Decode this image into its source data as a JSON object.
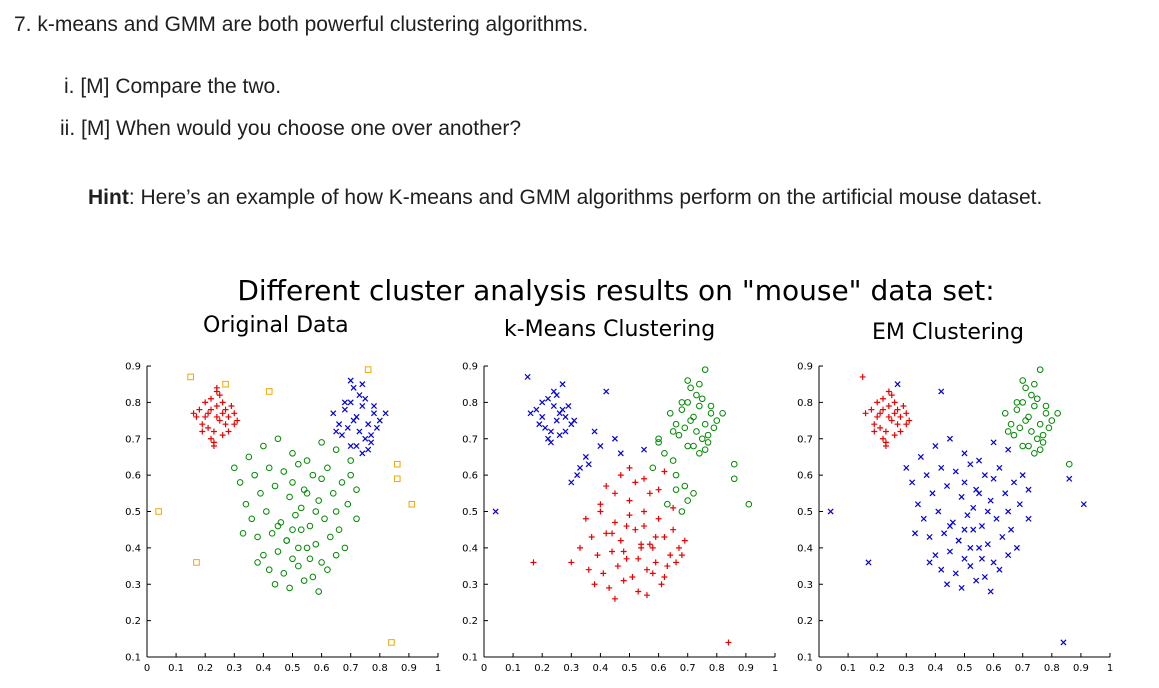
{
  "question": {
    "title": "7. k-means and GMM are both powerful clustering algorithms.",
    "subquestions": [
      "i. [M] Compare the two.",
      "ii. [M] When would you choose one over another?"
    ],
    "hint_label": "Hint",
    "hint_text": ": Here’s an example of how K-means and GMM algorithms perform on the artificial mouse dataset."
  },
  "figure": {
    "title": "Different cluster analysis results on \"mouse\" data set:",
    "panels": [
      {
        "title": "Original Data"
      },
      {
        "title": "k-Means Clustering"
      },
      {
        "title": "EM Clustering"
      }
    ]
  },
  "colors": {
    "red": "#ee0000",
    "blue": "#0000dd",
    "green": "#008800",
    "orange": "#eeaa00"
  },
  "chart_data": [
    {
      "type": "scatter",
      "title": "Original Data",
      "xlim": [
        0,
        1
      ],
      "ylim": [
        0.1,
        0.9
      ],
      "xticks": [
        "0",
        "0.1",
        "0.2",
        "0.3",
        "0.4",
        "0.5",
        "0.6",
        "0.7",
        "0.8",
        "0.9",
        "1"
      ],
      "yticks": [
        "0.1",
        "0.2",
        "0.3",
        "0.4",
        "0.5",
        "0.6",
        "0.7",
        "0.8",
        "0.9"
      ],
      "series": [
        {
          "marker": "plus",
          "color": "red",
          "x": [
            0.18,
            0.2,
            0.22,
            0.24,
            0.26,
            0.28,
            0.3,
            0.21,
            0.23,
            0.25,
            0.27,
            0.19,
            0.22,
            0.26,
            0.29,
            0.24,
            0.2,
            0.28,
            0.23,
            0.25,
            0.21,
            0.27,
            0.24,
            0.22,
            0.26,
            0.3,
            0.19,
            0.23,
            0.17,
            0.31,
            0.16,
            0.24
          ],
          "y": [
            0.78,
            0.8,
            0.81,
            0.79,
            0.77,
            0.76,
            0.74,
            0.73,
            0.72,
            0.75,
            0.78,
            0.74,
            0.7,
            0.71,
            0.79,
            0.83,
            0.76,
            0.72,
            0.69,
            0.82,
            0.77,
            0.74,
            0.76,
            0.78,
            0.8,
            0.77,
            0.72,
            0.68,
            0.76,
            0.75,
            0.77,
            0.84
          ]
        },
        {
          "marker": "cross",
          "color": "blue",
          "x": [
            0.64,
            0.66,
            0.68,
            0.7,
            0.72,
            0.74,
            0.76,
            0.78,
            0.8,
            0.67,
            0.69,
            0.71,
            0.73,
            0.75,
            0.77,
            0.79,
            0.7,
            0.72,
            0.74,
            0.76,
            0.68,
            0.73,
            0.75,
            0.71,
            0.78,
            0.65,
            0.82,
            0.7,
            0.74,
            0.77
          ],
          "y": [
            0.77,
            0.74,
            0.78,
            0.8,
            0.76,
            0.79,
            0.74,
            0.77,
            0.75,
            0.71,
            0.73,
            0.75,
            0.72,
            0.7,
            0.71,
            0.73,
            0.68,
            0.68,
            0.66,
            0.67,
            0.8,
            0.82,
            0.81,
            0.84,
            0.79,
            0.72,
            0.77,
            0.86,
            0.85,
            0.69
          ]
        },
        {
          "marker": "circle",
          "color": "green",
          "x": [
            0.3,
            0.35,
            0.4,
            0.45,
            0.5,
            0.55,
            0.6,
            0.65,
            0.7,
            0.32,
            0.37,
            0.42,
            0.47,
            0.52,
            0.57,
            0.62,
            0.67,
            0.72,
            0.34,
            0.39,
            0.44,
            0.49,
            0.54,
            0.59,
            0.64,
            0.69,
            0.36,
            0.41,
            0.46,
            0.51,
            0.56,
            0.61,
            0.66,
            0.38,
            0.43,
            0.48,
            0.53,
            0.58,
            0.63,
            0.68,
            0.4,
            0.45,
            0.5,
            0.55,
            0.6,
            0.65,
            0.42,
            0.47,
            0.52,
            0.57,
            0.62,
            0.44,
            0.49,
            0.54,
            0.59,
            0.48,
            0.53,
            0.58,
            0.5,
            0.55,
            0.45,
            0.6,
            0.65,
            0.38,
            0.33,
            0.7,
            0.72,
            0.5,
            0.52,
            0.56
          ],
          "y": [
            0.62,
            0.65,
            0.68,
            0.7,
            0.66,
            0.64,
            0.69,
            0.67,
            0.64,
            0.58,
            0.6,
            0.62,
            0.61,
            0.63,
            0.6,
            0.62,
            0.58,
            0.56,
            0.52,
            0.55,
            0.57,
            0.54,
            0.56,
            0.53,
            0.55,
            0.52,
            0.48,
            0.5,
            0.47,
            0.49,
            0.46,
            0.48,
            0.45,
            0.43,
            0.44,
            0.42,
            0.45,
            0.41,
            0.43,
            0.4,
            0.38,
            0.39,
            0.37,
            0.4,
            0.36,
            0.38,
            0.34,
            0.33,
            0.35,
            0.32,
            0.34,
            0.3,
            0.29,
            0.31,
            0.28,
            0.42,
            0.51,
            0.5,
            0.58,
            0.55,
            0.46,
            0.59,
            0.5,
            0.36,
            0.44,
            0.6,
            0.48,
            0.45,
            0.4,
            0.37
          ]
        },
        {
          "marker": "square",
          "color": "orange",
          "x": [
            0.15,
            0.27,
            0.42,
            0.76,
            0.86,
            0.86,
            0.91,
            0.04,
            0.17,
            0.84
          ],
          "y": [
            0.87,
            0.85,
            0.83,
            0.89,
            0.63,
            0.59,
            0.52,
            0.5,
            0.36,
            0.14
          ]
        }
      ]
    },
    {
      "type": "scatter",
      "title": "k-Means Clustering",
      "xlim": [
        0,
        1
      ],
      "ylim": [
        0.1,
        0.9
      ],
      "xticks": [
        "0",
        "0.1",
        "0.2",
        "0.3",
        "0.4",
        "0.5",
        "0.6",
        "0.7",
        "0.8",
        "0.9",
        "1"
      ],
      "yticks": [
        "0.1",
        "0.2",
        "0.3",
        "0.4",
        "0.5",
        "0.6",
        "0.7",
        "0.8",
        "0.9"
      ],
      "series": [
        {
          "marker": "cross",
          "color": "blue",
          "x": [
            0.18,
            0.2,
            0.22,
            0.24,
            0.26,
            0.28,
            0.3,
            0.21,
            0.23,
            0.25,
            0.27,
            0.19,
            0.22,
            0.26,
            0.29,
            0.24,
            0.2,
            0.28,
            0.23,
            0.25,
            0.15,
            0.27,
            0.42,
            0.04,
            0.31,
            0.16,
            0.35,
            0.4,
            0.33,
            0.45,
            0.3,
            0.38,
            0.47,
            0.55,
            0.32,
            0.36
          ],
          "y": [
            0.78,
            0.8,
            0.81,
            0.79,
            0.77,
            0.76,
            0.74,
            0.73,
            0.72,
            0.75,
            0.78,
            0.74,
            0.7,
            0.71,
            0.79,
            0.83,
            0.76,
            0.72,
            0.69,
            0.82,
            0.87,
            0.85,
            0.83,
            0.5,
            0.75,
            0.77,
            0.65,
            0.68,
            0.62,
            0.7,
            0.58,
            0.72,
            0.66,
            0.67,
            0.6,
            0.63
          ]
        },
        {
          "marker": "circle",
          "color": "green",
          "x": [
            0.64,
            0.66,
            0.68,
            0.7,
            0.72,
            0.74,
            0.76,
            0.78,
            0.8,
            0.67,
            0.69,
            0.71,
            0.73,
            0.75,
            0.77,
            0.79,
            0.7,
            0.72,
            0.74,
            0.76,
            0.68,
            0.73,
            0.75,
            0.71,
            0.78,
            0.65,
            0.82,
            0.7,
            0.74,
            0.77,
            0.6,
            0.62,
            0.65,
            0.58,
            0.66,
            0.69,
            0.72,
            0.76,
            0.86,
            0.86,
            0.91,
            0.63,
            0.68,
            0.7,
            0.6,
            0.66
          ],
          "y": [
            0.77,
            0.74,
            0.78,
            0.8,
            0.76,
            0.79,
            0.74,
            0.77,
            0.75,
            0.71,
            0.73,
            0.75,
            0.72,
            0.7,
            0.71,
            0.73,
            0.68,
            0.68,
            0.66,
            0.67,
            0.8,
            0.82,
            0.81,
            0.84,
            0.79,
            0.72,
            0.77,
            0.86,
            0.85,
            0.69,
            0.69,
            0.66,
            0.64,
            0.62,
            0.6,
            0.57,
            0.55,
            0.89,
            0.63,
            0.59,
            0.52,
            0.52,
            0.5,
            0.53,
            0.7,
            0.56
          ]
        },
        {
          "marker": "plus",
          "color": "red",
          "x": [
            0.35,
            0.4,
            0.45,
            0.5,
            0.55,
            0.6,
            0.65,
            0.37,
            0.42,
            0.47,
            0.52,
            0.57,
            0.62,
            0.67,
            0.39,
            0.44,
            0.49,
            0.54,
            0.59,
            0.64,
            0.69,
            0.36,
            0.41,
            0.46,
            0.51,
            0.56,
            0.61,
            0.66,
            0.38,
            0.43,
            0.48,
            0.53,
            0.58,
            0.63,
            0.68,
            0.4,
            0.45,
            0.5,
            0.55,
            0.6,
            0.65,
            0.42,
            0.47,
            0.52,
            0.57,
            0.62,
            0.44,
            0.49,
            0.54,
            0.59,
            0.48,
            0.53,
            0.58,
            0.5,
            0.55,
            0.17,
            0.84,
            0.3,
            0.33,
            0.56,
            0.45,
            0.62
          ],
          "y": [
            0.48,
            0.5,
            0.47,
            0.49,
            0.46,
            0.48,
            0.45,
            0.43,
            0.44,
            0.42,
            0.45,
            0.41,
            0.43,
            0.4,
            0.38,
            0.39,
            0.37,
            0.4,
            0.36,
            0.38,
            0.42,
            0.34,
            0.33,
            0.35,
            0.32,
            0.34,
            0.3,
            0.36,
            0.3,
            0.29,
            0.31,
            0.28,
            0.33,
            0.35,
            0.38,
            0.52,
            0.55,
            0.53,
            0.5,
            0.56,
            0.51,
            0.57,
            0.6,
            0.58,
            0.55,
            0.61,
            0.44,
            0.46,
            0.41,
            0.43,
            0.39,
            0.37,
            0.4,
            0.62,
            0.59,
            0.36,
            0.14,
            0.36,
            0.4,
            0.27,
            0.26,
            0.32
          ]
        }
      ]
    },
    {
      "type": "scatter",
      "title": "EM Clustering",
      "xlim": [
        0,
        1
      ],
      "ylim": [
        0.1,
        0.9
      ],
      "xticks": [
        "0",
        "0.1",
        "0.2",
        "0.3",
        "0.4",
        "0.5",
        "0.6",
        "0.7",
        "0.8",
        "0.9",
        "1"
      ],
      "yticks": [
        "0.1",
        "0.2",
        "0.3",
        "0.4",
        "0.5",
        "0.6",
        "0.7",
        "0.8",
        "0.9"
      ],
      "series": [
        {
          "marker": "plus",
          "color": "red",
          "x": [
            0.18,
            0.2,
            0.22,
            0.24,
            0.26,
            0.28,
            0.3,
            0.21,
            0.23,
            0.25,
            0.27,
            0.19,
            0.22,
            0.26,
            0.29,
            0.24,
            0.2,
            0.28,
            0.23,
            0.25,
            0.21,
            0.27,
            0.24,
            0.22,
            0.26,
            0.3,
            0.19,
            0.23,
            0.15,
            0.16,
            0.31
          ],
          "y": [
            0.78,
            0.8,
            0.81,
            0.79,
            0.77,
            0.76,
            0.74,
            0.73,
            0.72,
            0.75,
            0.78,
            0.74,
            0.7,
            0.71,
            0.79,
            0.83,
            0.76,
            0.72,
            0.69,
            0.82,
            0.77,
            0.74,
            0.76,
            0.78,
            0.8,
            0.77,
            0.72,
            0.68,
            0.87,
            0.77,
            0.75
          ]
        },
        {
          "marker": "circle",
          "color": "green",
          "x": [
            0.64,
            0.66,
            0.68,
            0.7,
            0.72,
            0.74,
            0.76,
            0.78,
            0.8,
            0.67,
            0.69,
            0.71,
            0.73,
            0.75,
            0.77,
            0.79,
            0.7,
            0.72,
            0.74,
            0.76,
            0.68,
            0.73,
            0.75,
            0.71,
            0.78,
            0.65,
            0.82,
            0.7,
            0.74,
            0.77,
            0.76,
            0.86
          ],
          "y": [
            0.77,
            0.74,
            0.78,
            0.8,
            0.76,
            0.79,
            0.74,
            0.77,
            0.75,
            0.71,
            0.73,
            0.75,
            0.72,
            0.7,
            0.71,
            0.73,
            0.68,
            0.68,
            0.66,
            0.67,
            0.8,
            0.82,
            0.81,
            0.84,
            0.79,
            0.72,
            0.77,
            0.86,
            0.85,
            0.69,
            0.89,
            0.63
          ]
        },
        {
          "marker": "cross",
          "color": "blue",
          "x": [
            0.3,
            0.35,
            0.4,
            0.45,
            0.5,
            0.55,
            0.6,
            0.65,
            0.32,
            0.37,
            0.42,
            0.47,
            0.52,
            0.57,
            0.62,
            0.67,
            0.72,
            0.34,
            0.39,
            0.44,
            0.49,
            0.54,
            0.59,
            0.64,
            0.69,
            0.36,
            0.41,
            0.46,
            0.51,
            0.56,
            0.61,
            0.66,
            0.38,
            0.43,
            0.48,
            0.53,
            0.58,
            0.63,
            0.68,
            0.4,
            0.45,
            0.5,
            0.55,
            0.6,
            0.65,
            0.42,
            0.47,
            0.52,
            0.57,
            0.62,
            0.44,
            0.49,
            0.54,
            0.59,
            0.48,
            0.53,
            0.58,
            0.5,
            0.55,
            0.45,
            0.6,
            0.65,
            0.38,
            0.33,
            0.7,
            0.72,
            0.5,
            0.52,
            0.56,
            0.42,
            0.04,
            0.17,
            0.84,
            0.91,
            0.86,
            0.27
          ],
          "y": [
            0.62,
            0.65,
            0.68,
            0.7,
            0.66,
            0.64,
            0.69,
            0.67,
            0.58,
            0.6,
            0.62,
            0.61,
            0.63,
            0.6,
            0.62,
            0.58,
            0.56,
            0.52,
            0.55,
            0.57,
            0.54,
            0.56,
            0.53,
            0.55,
            0.52,
            0.48,
            0.5,
            0.47,
            0.49,
            0.46,
            0.48,
            0.45,
            0.43,
            0.44,
            0.42,
            0.45,
            0.41,
            0.43,
            0.4,
            0.38,
            0.39,
            0.37,
            0.4,
            0.36,
            0.38,
            0.34,
            0.33,
            0.35,
            0.32,
            0.34,
            0.3,
            0.29,
            0.31,
            0.28,
            0.42,
            0.51,
            0.5,
            0.58,
            0.55,
            0.46,
            0.59,
            0.5,
            0.36,
            0.44,
            0.6,
            0.48,
            0.45,
            0.4,
            0.37,
            0.83,
            0.5,
            0.36,
            0.14,
            0.52,
            0.59,
            0.85
          ]
        }
      ]
    }
  ]
}
